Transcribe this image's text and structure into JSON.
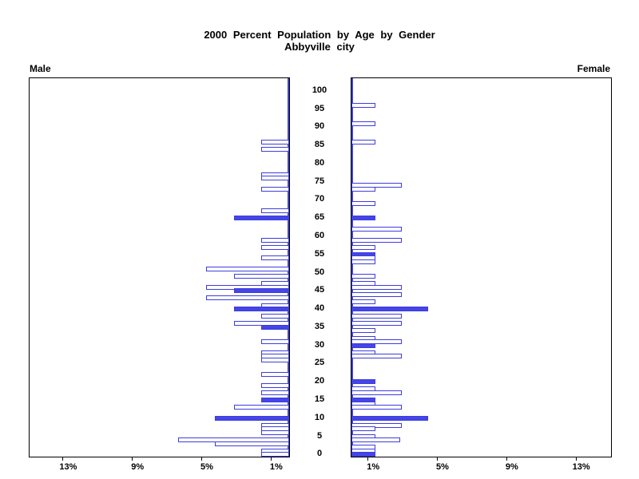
{
  "title": {
    "line1": "2000 Percent Population by Age by Gender",
    "line2": "Abbyville city"
  },
  "side_labels": {
    "left": "Male",
    "right": "Female"
  },
  "colors": {
    "bar_border": "#3d3ddd",
    "bar_solid_fill": "#4545e8",
    "bar_hollow_fill": "#ffffff",
    "zero_line": "#4040dd",
    "axis": "#000000",
    "background": "#ffffff"
  },
  "chart_data": {
    "type": "bar",
    "subtype": "population-pyramid",
    "orientation": "horizontal, male bars extend left, female bars extend right",
    "grid": false,
    "legend": false,
    "age_axis": {
      "label_position": "center between plots",
      "min": 0,
      "max": 100,
      "tick_step": 5,
      "tick_labels": [
        "100",
        "95",
        "90",
        "85",
        "80",
        "75",
        "70",
        "65",
        "60",
        "55",
        "50",
        "45",
        "40",
        "35",
        "30",
        "25",
        "20",
        "15",
        "10",
        "5",
        "0"
      ]
    },
    "percent_axis": {
      "max_percent_shown": 15,
      "male_tick_labels": [
        "13%",
        "9%",
        "5%",
        "1%"
      ],
      "female_tick_labels": [
        "1%",
        "5%",
        "9%",
        "13%"
      ],
      "ticks_percent": [
        1,
        5,
        9,
        13
      ]
    },
    "series": [
      {
        "name": "Male",
        "side": "left",
        "note": "single-year-of-age bars; solid=true bars are filled blue, others hollow",
        "points": [
          {
            "age": 86,
            "pct": 1.6,
            "solid": false
          },
          {
            "age": 84,
            "pct": 1.6,
            "solid": false
          },
          {
            "age": 77,
            "pct": 1.6,
            "solid": false
          },
          {
            "age": 76,
            "pct": 1.6,
            "solid": false
          },
          {
            "age": 73,
            "pct": 1.6,
            "solid": false
          },
          {
            "age": 67,
            "pct": 1.6,
            "solid": false
          },
          {
            "age": 65,
            "pct": 3.2,
            "solid": true
          },
          {
            "age": 59,
            "pct": 1.6,
            "solid": false
          },
          {
            "age": 57,
            "pct": 1.6,
            "solid": false
          },
          {
            "age": 54,
            "pct": 1.6,
            "solid": false
          },
          {
            "age": 51,
            "pct": 4.8,
            "solid": false
          },
          {
            "age": 49,
            "pct": 3.2,
            "solid": false
          },
          {
            "age": 47,
            "pct": 1.6,
            "solid": false
          },
          {
            "age": 46,
            "pct": 4.8,
            "solid": false
          },
          {
            "age": 45,
            "pct": 3.2,
            "solid": true
          },
          {
            "age": 43,
            "pct": 4.8,
            "solid": false
          },
          {
            "age": 41,
            "pct": 1.6,
            "solid": false
          },
          {
            "age": 40,
            "pct": 3.2,
            "solid": true
          },
          {
            "age": 38,
            "pct": 1.6,
            "solid": false
          },
          {
            "age": 36,
            "pct": 3.2,
            "solid": false
          },
          {
            "age": 35,
            "pct": 1.6,
            "solid": true
          },
          {
            "age": 31,
            "pct": 1.6,
            "solid": false
          },
          {
            "age": 28,
            "pct": 1.6,
            "solid": false
          },
          {
            "age": 27,
            "pct": 1.6,
            "solid": false
          },
          {
            "age": 26,
            "pct": 1.6,
            "solid": false
          },
          {
            "age": 22,
            "pct": 1.6,
            "solid": false
          },
          {
            "age": 19,
            "pct": 1.6,
            "solid": false
          },
          {
            "age": 17,
            "pct": 1.6,
            "solid": false
          },
          {
            "age": 15,
            "pct": 1.6,
            "solid": true
          },
          {
            "age": 13,
            "pct": 3.2,
            "solid": false
          },
          {
            "age": 10,
            "pct": 4.3,
            "solid": true
          },
          {
            "age": 8,
            "pct": 1.6,
            "solid": false
          },
          {
            "age": 7,
            "pct": 1.6,
            "solid": false
          },
          {
            "age": 6,
            "pct": 1.6,
            "solid": false
          },
          {
            "age": 4,
            "pct": 6.4,
            "solid": false
          },
          {
            "age": 3,
            "pct": 4.3,
            "solid": false
          },
          {
            "age": 1,
            "pct": 1.6,
            "solid": false
          },
          {
            "age": 0,
            "pct": 1.6,
            "solid": false
          }
        ]
      },
      {
        "name": "Female",
        "side": "right",
        "points": [
          {
            "age": 96,
            "pct": 1.4,
            "solid": false
          },
          {
            "age": 91,
            "pct": 1.4,
            "solid": false
          },
          {
            "age": 86,
            "pct": 1.4,
            "solid": false
          },
          {
            "age": 74,
            "pct": 2.9,
            "solid": false
          },
          {
            "age": 73,
            "pct": 1.4,
            "solid": false
          },
          {
            "age": 69,
            "pct": 1.4,
            "solid": false
          },
          {
            "age": 65,
            "pct": 1.4,
            "solid": true
          },
          {
            "age": 62,
            "pct": 2.9,
            "solid": false
          },
          {
            "age": 59,
            "pct": 2.9,
            "solid": false
          },
          {
            "age": 57,
            "pct": 1.4,
            "solid": false
          },
          {
            "age": 55,
            "pct": 1.4,
            "solid": true
          },
          {
            "age": 54,
            "pct": 1.4,
            "solid": false
          },
          {
            "age": 53,
            "pct": 1.4,
            "solid": false
          },
          {
            "age": 49,
            "pct": 1.4,
            "solid": false
          },
          {
            "age": 47,
            "pct": 1.4,
            "solid": false
          },
          {
            "age": 46,
            "pct": 2.9,
            "solid": false
          },
          {
            "age": 44,
            "pct": 2.9,
            "solid": false
          },
          {
            "age": 42,
            "pct": 1.4,
            "solid": false
          },
          {
            "age": 40,
            "pct": 4.4,
            "solid": true
          },
          {
            "age": 38,
            "pct": 2.9,
            "solid": false
          },
          {
            "age": 36,
            "pct": 2.9,
            "solid": false
          },
          {
            "age": 34,
            "pct": 1.4,
            "solid": false
          },
          {
            "age": 32,
            "pct": 1.4,
            "solid": false
          },
          {
            "age": 31,
            "pct": 2.9,
            "solid": false
          },
          {
            "age": 30,
            "pct": 1.4,
            "solid": true
          },
          {
            "age": 28,
            "pct": 1.4,
            "solid": false
          },
          {
            "age": 27,
            "pct": 2.9,
            "solid": false
          },
          {
            "age": 20,
            "pct": 1.4,
            "solid": true
          },
          {
            "age": 18,
            "pct": 1.4,
            "solid": false
          },
          {
            "age": 17,
            "pct": 2.9,
            "solid": false
          },
          {
            "age": 15,
            "pct": 1.4,
            "solid": true
          },
          {
            "age": 14,
            "pct": 1.4,
            "solid": false
          },
          {
            "age": 13,
            "pct": 2.9,
            "solid": false
          },
          {
            "age": 10,
            "pct": 4.4,
            "solid": true
          },
          {
            "age": 8,
            "pct": 2.9,
            "solid": false
          },
          {
            "age": 7,
            "pct": 1.4,
            "solid": false
          },
          {
            "age": 5,
            "pct": 1.4,
            "solid": false
          },
          {
            "age": 4,
            "pct": 2.8,
            "solid": false
          },
          {
            "age": 2,
            "pct": 1.4,
            "solid": false
          },
          {
            "age": 1,
            "pct": 1.4,
            "solid": false
          },
          {
            "age": 0,
            "pct": 1.4,
            "solid": true
          }
        ]
      }
    ]
  }
}
